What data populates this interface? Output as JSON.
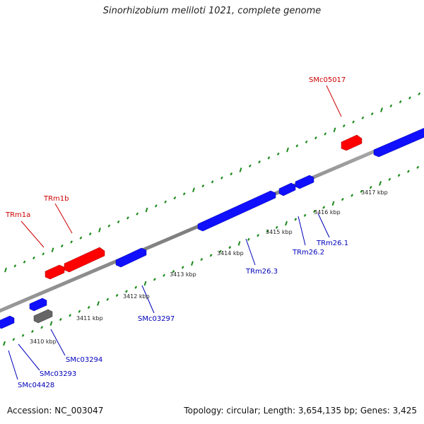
{
  "title": "Sinorhizobium meliloti 1021, complete genome",
  "footer": {
    "accession": "Accession: NC_003047",
    "topology": "Topology: circular; Length: 3,654,135 bp; Genes: 3,425"
  },
  "colors": {
    "backbone": "#8a8a8a",
    "tick": "#1a8a1a",
    "forward_gene": "#ff0000",
    "reverse_gene": "#1010ff",
    "other_gene": "#666666",
    "forward_label": "#cc0000",
    "reverse_label": "#0000bb",
    "kbp_label": "#222222"
  },
  "scale": {
    "unit": "kbp",
    "labels": [
      "3410 kbp",
      "3411 kbp",
      "3412 kbp",
      "3413 kbp",
      "3414 kbp",
      "3415 kbp",
      "3416 kbp",
      "3417 kbp"
    ]
  },
  "forward_genes": [
    {
      "name": "TRm1a"
    },
    {
      "name": "TRm1b"
    },
    {
      "name": "SMc05017"
    }
  ],
  "reverse_genes": [
    {
      "name": "SMc04428"
    },
    {
      "name": "SMc03293"
    },
    {
      "name": "SMc03294"
    },
    {
      "name": "SMc03297"
    },
    {
      "name": "TRm26.3"
    },
    {
      "name": "TRm26.2"
    },
    {
      "name": "TRm26.1"
    }
  ]
}
